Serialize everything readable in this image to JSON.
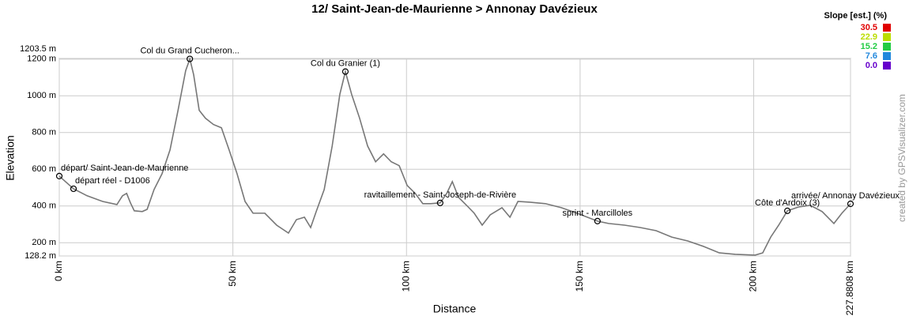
{
  "chart_data": {
    "type": "line",
    "title": "12/ Saint-Jean-de-Maurienne > Annonay Davézieux",
    "x_label": "Distance",
    "y_label": "Elevation",
    "credit": "created by GPSVisualizer.com",
    "x": [
      0,
      4.1,
      8.0,
      12.5,
      16.6,
      18.2,
      19.4,
      20.5,
      21.6,
      23.9,
      25.3,
      27.3,
      29.6,
      31.9,
      34.2,
      36.4,
      37.6,
      38.7,
      40.3,
      42.1,
      44.4,
      46.7,
      48.9,
      51.2,
      53.5,
      55.8,
      59.2,
      62.6,
      66.0,
      68.3,
      70.6,
      72.4,
      74.0,
      76.3,
      78.6,
      80.8,
      82.4,
      84.2,
      86.5,
      88.8,
      91.1,
      93.4,
      95.6,
      97.9,
      100.2,
      102.5,
      104.7,
      107.0,
      109.7,
      111.6,
      113.2,
      115.0,
      117.3,
      119.5,
      121.8,
      124.1,
      127.5,
      129.8,
      132.1,
      135.5,
      140.0,
      144.6,
      149.1,
      155.0,
      158.2,
      162.8,
      167.3,
      171.9,
      176.4,
      181.0,
      185.6,
      190.1,
      194.7,
      200.4,
      202.6,
      204.9,
      207.2,
      209.7,
      212.9,
      216.3,
      219.7,
      223.1,
      225.4,
      227.88
    ],
    "series": [
      {
        "color": "#777777",
        "values": [
          563,
          494,
          456,
          425,
          408,
          456,
          469,
          417,
          374,
          370,
          382,
          490,
          576,
          706,
          921,
          1137,
          1201,
          1115,
          921,
          878,
          844,
          826,
          706,
          576,
          425,
          361,
          361,
          296,
          253,
          326,
          339,
          283,
          370,
          490,
          727,
          1008,
          1132,
          1008,
          878,
          727,
          641,
          684,
          641,
          620,
          512,
          469,
          413,
          413,
          417,
          469,
          533,
          447,
          404,
          361,
          296,
          352,
          391,
          339,
          425,
          421,
          413,
          391,
          361,
          318,
          305,
          296,
          283,
          266,
          231,
          210,
          180,
          145,
          137,
          133,
          145,
          231,
          296,
          374,
          395,
          404,
          370,
          305,
          361,
          412
        ]
      }
    ],
    "waypoints": [
      {
        "label": "départ/ Saint-Jean-de-Maurienne",
        "x": 0,
        "y": 563
      },
      {
        "label": "départ réel - D1006",
        "x": 4.1,
        "y": 494
      },
      {
        "label": "Col du Grand Cucheron...",
        "x": 37.6,
        "y": 1201
      },
      {
        "label": "Col du Granier (1)",
        "x": 82.4,
        "y": 1132
      },
      {
        "label": "ravitaillement - Saint-Joseph-de-Rivière",
        "x": 109.7,
        "y": 417
      },
      {
        "label": "sprint - Marcilloles",
        "x": 155.0,
        "y": 318
      },
      {
        "label": "Côte d'Ardoix (3)",
        "x": 209.7,
        "y": 374
      },
      {
        "label": "arrivée/ Annonay Davézieux",
        "x": 227.88,
        "y": 412
      }
    ],
    "xlim": [
      0,
      227.8808
    ],
    "ylim": [
      128.2,
      1203.5
    ],
    "xticks": [
      {
        "value": 0,
        "label": "0 km"
      },
      {
        "value": 50,
        "label": "50 km"
      },
      {
        "value": 100,
        "label": "100 km"
      },
      {
        "value": 150,
        "label": "150 km"
      },
      {
        "value": 200,
        "label": "200 km"
      },
      {
        "value": 227.8808,
        "label": "227.8808 km"
      }
    ],
    "yticks": [
      {
        "value": 128.2,
        "label": "128.2 m"
      },
      {
        "value": 200,
        "label": "200 m"
      },
      {
        "value": 400,
        "label": "400 m"
      },
      {
        "value": 600,
        "label": "600 m"
      },
      {
        "value": 800,
        "label": "800 m"
      },
      {
        "value": 1000,
        "label": "1000 m"
      },
      {
        "value": 1200,
        "label": "1200 m"
      },
      {
        "value": 1203.5,
        "label": "1203.5 m"
      }
    ],
    "grid": true,
    "slope_legend": {
      "title": "Slope [est.] (%)",
      "items": [
        {
          "value": 30.5,
          "color": "#e00000"
        },
        {
          "value": 22.9,
          "color": "#bbdd00"
        },
        {
          "value": 15.2,
          "color": "#22cc44"
        },
        {
          "value": 7.6,
          "color": "#2288dd"
        },
        {
          "value": 0,
          "label": "0.0",
          "color": "#6600cc"
        }
      ]
    }
  }
}
